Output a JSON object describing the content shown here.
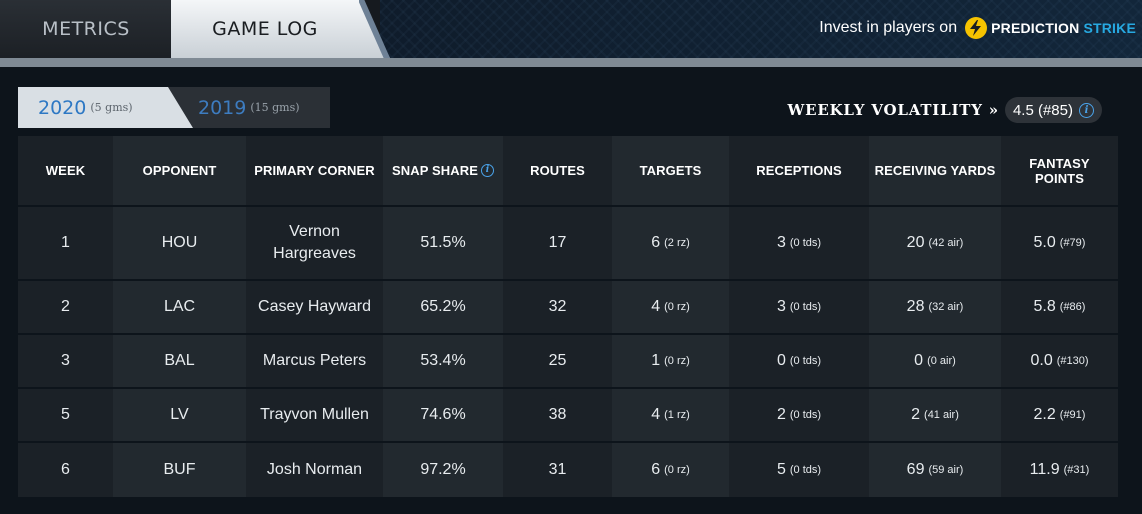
{
  "tabs": {
    "metrics": "METRICS",
    "game_log": "GAME LOG"
  },
  "promo": {
    "text": "Invest in players on",
    "brand_a": "PREDICTION",
    "brand_b": "STRIKE",
    "icon": "lightning-bolt-icon"
  },
  "seasons": [
    {
      "year": "2020",
      "games": "(5 gms)",
      "active": true
    },
    {
      "year": "2019",
      "games": "(15 gms)",
      "active": false
    }
  ],
  "volatility": {
    "label": "WEEKLY VOLATILITY »",
    "value": "4.5 (#85)",
    "icon": "info-icon"
  },
  "table": {
    "headers": {
      "week": "WEEK",
      "opponent": "OPPONENT",
      "corner": "PRIMARY CORNER",
      "snap": "SNAP SHARE",
      "routes": "ROUTES",
      "targets": "TARGETS",
      "receptions": "RECEPTIONS",
      "yards": "RECEIVING YARDS",
      "fantasy_1": "FANTASY",
      "fantasy_2": "POINTS"
    },
    "rows": [
      {
        "week": "1",
        "opponent": "HOU",
        "corner_1": "Vernon",
        "corner_2": "Hargreaves",
        "snap": "51.5%",
        "routes": "17",
        "targets": "6",
        "targets_sub": "(2 rz)",
        "receptions": "3",
        "receptions_sub": "(0 tds)",
        "yards": "20",
        "yards_sub": "(42 air)",
        "fantasy": "5.0",
        "fantasy_sub": "(#79)"
      },
      {
        "week": "2",
        "opponent": "LAC",
        "corner_1": "Casey Hayward",
        "corner_2": "",
        "snap": "65.2%",
        "routes": "32",
        "targets": "4",
        "targets_sub": "(0 rz)",
        "receptions": "3",
        "receptions_sub": "(0 tds)",
        "yards": "28",
        "yards_sub": "(32 air)",
        "fantasy": "5.8",
        "fantasy_sub": "(#86)"
      },
      {
        "week": "3",
        "opponent": "BAL",
        "corner_1": "Marcus Peters",
        "corner_2": "",
        "snap": "53.4%",
        "routes": "25",
        "targets": "1",
        "targets_sub": "(0 rz)",
        "receptions": "0",
        "receptions_sub": "(0 tds)",
        "yards": "0",
        "yards_sub": "(0 air)",
        "fantasy": "0.0",
        "fantasy_sub": "(#130)"
      },
      {
        "week": "5",
        "opponent": "LV",
        "corner_1": "Trayvon Mullen",
        "corner_2": "",
        "snap": "74.6%",
        "routes": "38",
        "targets": "4",
        "targets_sub": "(1 rz)",
        "receptions": "2",
        "receptions_sub": "(0 tds)",
        "yards": "2",
        "yards_sub": "(41 air)",
        "fantasy": "2.2",
        "fantasy_sub": "(#91)"
      },
      {
        "week": "6",
        "opponent": "BUF",
        "corner_1": "Josh Norman",
        "corner_2": "",
        "snap": "97.2%",
        "routes": "31",
        "targets": "6",
        "targets_sub": "(0 rz)",
        "receptions": "5",
        "receptions_sub": "(0 tds)",
        "yards": "69",
        "yards_sub": "(59 air)",
        "fantasy": "11.9",
        "fantasy_sub": "(#31)"
      }
    ]
  },
  "colors": {
    "accent_blue": "#2d78c4",
    "brand_yellow": "#f6c300",
    "brand_blue": "#27a9e1"
  }
}
